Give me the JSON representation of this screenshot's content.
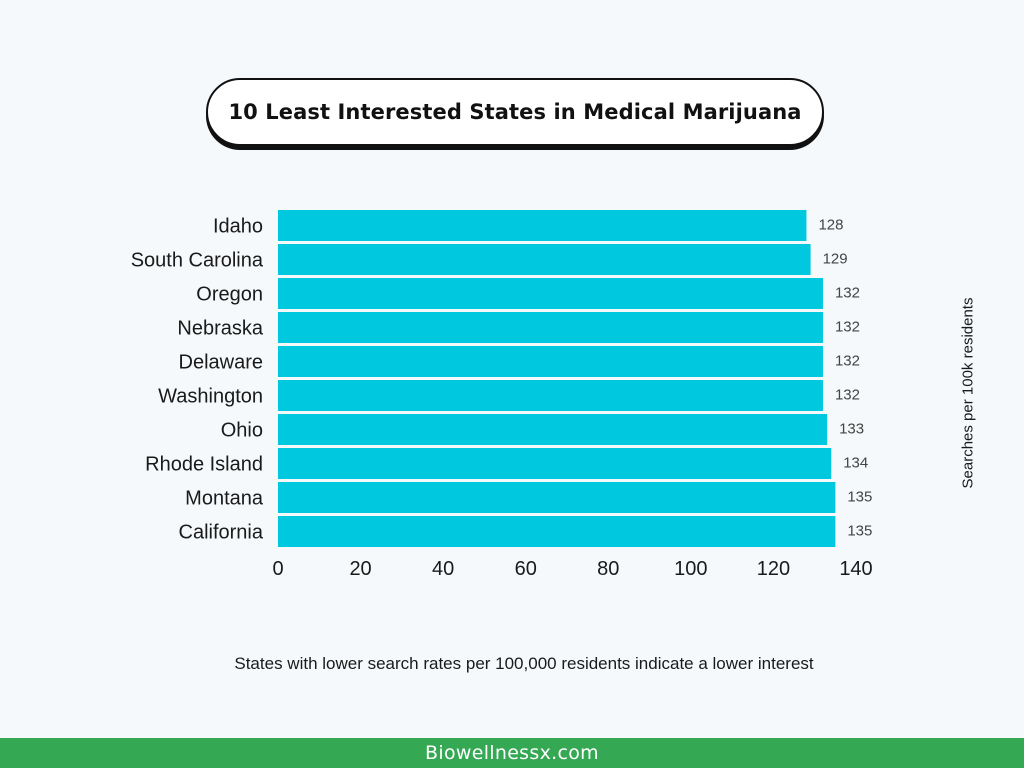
{
  "title": "10 Least Interested States in Medical Marijuana",
  "caption": "States with lower search rates per 100,000 residents indicate a lower interest",
  "footer": {
    "text": "Biowellnessx.com",
    "color": "#34a853"
  },
  "chart_data": {
    "type": "bar",
    "orientation": "horizontal",
    "categories": [
      "Idaho",
      "South Carolina",
      "Oregon",
      "Nebraska",
      "Delaware",
      "Washington",
      "Ohio",
      "Rhode Island",
      "Montana",
      "California"
    ],
    "values": [
      128,
      129,
      132,
      132,
      132,
      132,
      133,
      134,
      135,
      135
    ],
    "title": "10 Least Interested States in Medical Marijuana",
    "xlabel": "",
    "ylabel": "Searches per 100k residents",
    "xlim": [
      0,
      140
    ],
    "xticks": [
      0,
      20,
      40,
      60,
      80,
      100,
      120,
      140
    ],
    "bar_color": "#00c8de",
    "grid": false,
    "legend": "none"
  }
}
